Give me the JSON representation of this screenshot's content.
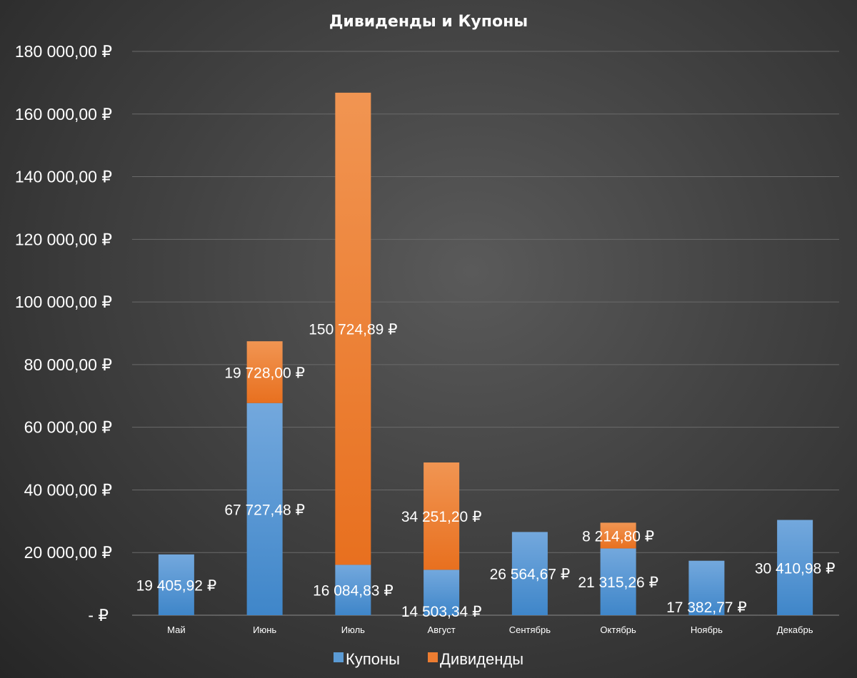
{
  "chart_data": {
    "type": "bar",
    "stacked": true,
    "title": "Дивиденды и Купоны",
    "categories": [
      "Май",
      "Июнь",
      "Июль",
      "Август",
      "Сентябрь",
      "Октябрь",
      "Ноябрь",
      "Декабрь"
    ],
    "series": [
      {
        "name": "Купоны",
        "color": "#5b9bd5",
        "values": [
          19405.92,
          67727.48,
          16084.83,
          14503.34,
          26564.67,
          21315.26,
          17382.77,
          30410.98
        ],
        "labels": [
          "19 405,92 ₽",
          "67 727,48 ₽",
          "16 084,83 ₽",
          "14 503,34 ₽",
          "26 564,67 ₽",
          "21 315,26 ₽",
          "17 382,77 ₽",
          "30 410,98 ₽"
        ]
      },
      {
        "name": "Дивиденды",
        "color": "#ed7d31",
        "values": [
          0,
          19728.0,
          150724.89,
          34251.2,
          0,
          8214.8,
          0,
          0
        ],
        "labels": [
          "",
          "19 728,00 ₽",
          "150 724,89 ₽",
          "34 251,20 ₽",
          "",
          "8 214,80 ₽",
          "",
          ""
        ]
      }
    ],
    "ylim": [
      0,
      180000
    ],
    "yticks": [
      0,
      20000,
      40000,
      60000,
      80000,
      100000,
      120000,
      140000,
      160000,
      180000
    ],
    "ytick_labels": [
      "-  ₽",
      "20 000,00 ₽",
      "40 000,00 ₽",
      "60 000,00 ₽",
      "80 000,00 ₽",
      "100 000,00 ₽",
      "120 000,00 ₽",
      "140 000,00 ₽",
      "160 000,00 ₽",
      "180 000,00 ₽"
    ],
    "grid": true,
    "legend": "bottom"
  }
}
